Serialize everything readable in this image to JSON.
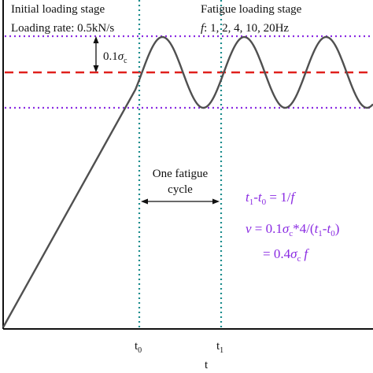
{
  "labels": {
    "initial_stage": "Initial loading stage",
    "loading_rate": "Loading rate: 0.5kN/s",
    "fatigue_stage": "Fatigue loading stage",
    "freq_f": "f",
    "freq_values": ": 1, 2, 4, 10, 20Hz",
    "amp_prefix": "0.1",
    "sigma": "σ",
    "sub_c": "c",
    "cycle_line1": "One fatigue",
    "cycle_line2": "cycle",
    "t0_main": "t",
    "t0_sub": "0",
    "t1_main": "t",
    "t1_sub": "1",
    "x_axis": "t"
  },
  "equations": {
    "eq1_t1": "t",
    "eq1_t1_sub": "1",
    "eq1_dash": "-",
    "eq1_t0": "t",
    "eq1_t0_sub": "0",
    "eq1_rhs": " = 1/",
    "eq1_f": "f",
    "eq2_v": "v",
    "eq2_mid": " = 0.1",
    "eq2_sigma": "σ",
    "eq2_c": "c",
    "eq2_mid2": "*4/(",
    "eq2_t1": "t",
    "eq2_t1_sub": "1",
    "eq2_dash": "-",
    "eq2_t0": "t",
    "eq2_t0_sub": "0",
    "eq2_end": ")",
    "eq3_left": "= 0.4",
    "eq3_sigma": "σ",
    "eq3_c": "c",
    "eq3_f": "f"
  },
  "colors": {
    "curve": "#505050",
    "mean_line": "#e0201c",
    "bound_lines": "#8a2be2",
    "time_markers": "#1a8c8c",
    "equations": "#8a2be2",
    "text": "#111111"
  }
}
